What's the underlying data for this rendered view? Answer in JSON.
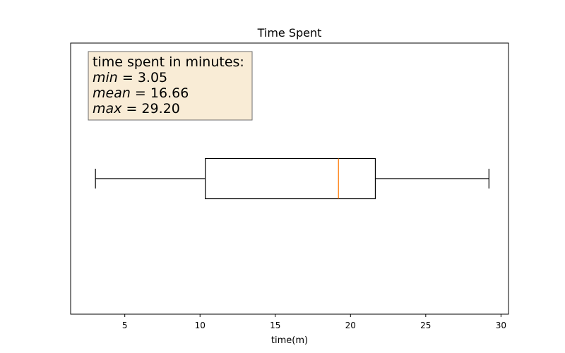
{
  "chart_data": {
    "type": "boxplot",
    "orientation": "horizontal",
    "title": "Time Spent",
    "xlabel": "time(m)",
    "ylabel": "",
    "xlim": [
      1.4,
      30.5
    ],
    "xticks": [
      5,
      10,
      15,
      20,
      25,
      30
    ],
    "xtick_labels": [
      "5",
      "10",
      "15",
      "20",
      "25",
      "30"
    ],
    "box": {
      "whisker_low": 3.05,
      "q1": 10.35,
      "median": 19.2,
      "q3": 21.65,
      "whisker_high": 29.2
    },
    "annotation": {
      "heading": "time spent in minutes:",
      "rows": [
        {
          "var": "min",
          "eq": " = ",
          "val": "3.05"
        },
        {
          "var": "mean",
          "eq": " = ",
          "val": "16.66"
        },
        {
          "var": "max",
          "eq": " = ",
          "val": "29.20"
        }
      ]
    },
    "grid": false,
    "colors": {
      "median_line": "#ff7f0e",
      "box_stroke": "#000000",
      "annotation_bg": "#f9ecd6",
      "annotation_border": "#6d6d6d",
      "axes": "#000000"
    }
  }
}
